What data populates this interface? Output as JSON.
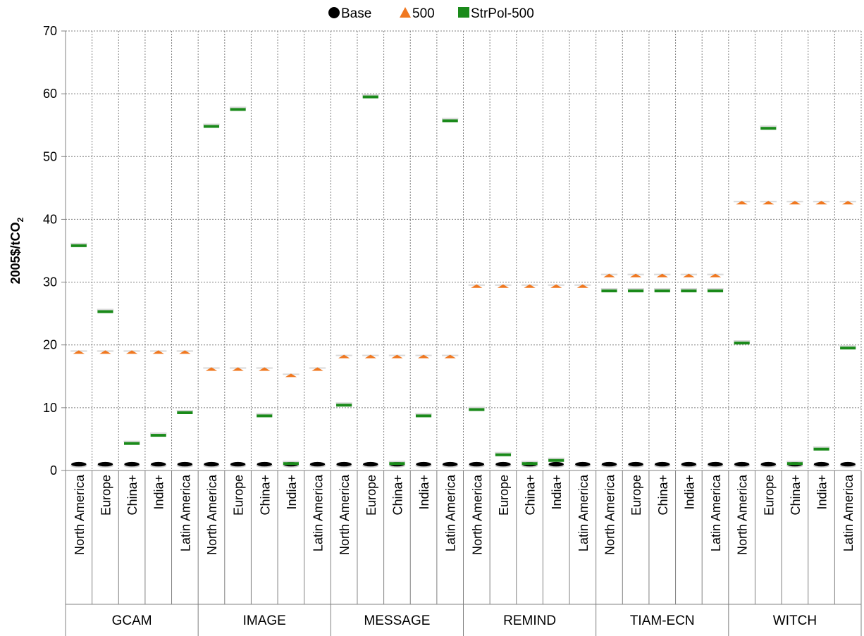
{
  "chart_data": {
    "type": "scatter",
    "ylabel": "2005$/tCO",
    "ylabel_subscript": "2",
    "ylim": [
      0,
      70
    ],
    "yticks": [
      "0",
      "10",
      "20",
      "30",
      "40",
      "50",
      "60",
      "70"
    ],
    "grid": true,
    "legend_position": "top",
    "groups": [
      {
        "name": "GCAM",
        "categories": [
          "North America",
          "Europe",
          "China+",
          "India+",
          "Latin America"
        ]
      },
      {
        "name": "IMAGE",
        "categories": [
          "North America",
          "Europe",
          "China+",
          "India+",
          "Latin America"
        ]
      },
      {
        "name": "MESSAGE",
        "categories": [
          "North America",
          "Europe",
          "China+",
          "India+",
          "Latin America"
        ]
      },
      {
        "name": "REMIND",
        "categories": [
          "North America",
          "Europe",
          "China+",
          "India+",
          "Latin America"
        ]
      },
      {
        "name": "TIAM-ECN",
        "categories": [
          "North America",
          "Europe",
          "China+",
          "India+",
          "Latin America"
        ]
      },
      {
        "name": "WITCH",
        "categories": [
          "North America",
          "Europe",
          "China+",
          "India+",
          "Latin America"
        ]
      }
    ],
    "series": [
      {
        "name": "Base",
        "marker": "circle",
        "color": "#000000",
        "values": [
          1,
          1,
          1,
          1,
          1,
          1,
          1,
          1,
          1,
          1,
          1,
          1,
          1,
          1,
          1,
          1,
          1,
          1,
          1,
          1,
          1,
          1,
          1,
          1,
          1,
          1,
          1,
          1,
          1,
          1
        ]
      },
      {
        "name": "500",
        "marker": "triangle",
        "color": "#f07820",
        "values": [
          18.8,
          18.8,
          18.8,
          18.8,
          18.8,
          16.1,
          16.1,
          16.1,
          15.1,
          16.1,
          18.1,
          18.1,
          18.1,
          18.1,
          18.1,
          29.3,
          29.3,
          29.3,
          29.3,
          29.3,
          31,
          31,
          31,
          31,
          31,
          42.6,
          42.6,
          42.6,
          42.6,
          42.6
        ]
      },
      {
        "name": "StrPol-500",
        "marker": "square",
        "color": "#1a8a1a",
        "values": [
          35.8,
          25.3,
          4.3,
          5.6,
          9.2,
          54.8,
          57.5,
          8.7,
          1.1,
          null,
          10.4,
          59.5,
          1.1,
          8.7,
          55.7,
          9.7,
          2.5,
          1.1,
          1.6,
          null,
          28.6,
          28.6,
          28.6,
          28.6,
          28.6,
          20.3,
          54.5,
          1.1,
          3.4,
          19.5
        ]
      }
    ]
  }
}
